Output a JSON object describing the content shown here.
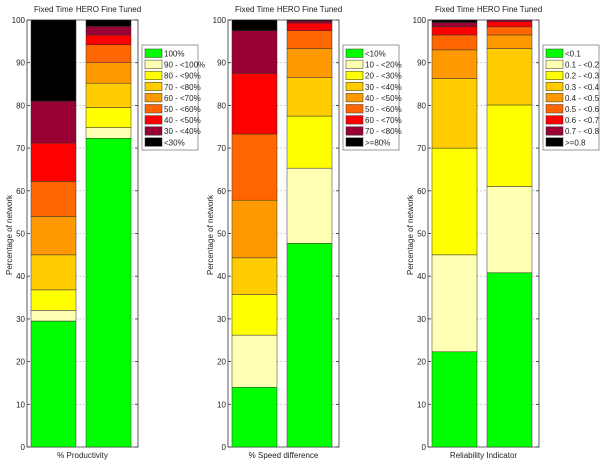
{
  "colors": [
    "#00ff00",
    "#ffffb3",
    "#ffff00",
    "#ffcc00",
    "#ff9900",
    "#ff6600",
    "#ff0000",
    "#990033",
    "#000000"
  ],
  "chart_data": [
    {
      "type": "bar",
      "stacked": true,
      "categories": [
        "Fixed Time",
        "HERO Fine Tuned"
      ],
      "xlabel": "% Productivity",
      "ylabel": "Percentage of network",
      "ylim": [
        0,
        100
      ],
      "yticks": [
        0,
        10,
        20,
        30,
        40,
        50,
        60,
        70,
        80,
        90,
        100
      ],
      "legend_position": "right",
      "series": [
        {
          "name": "100%",
          "values": [
            29.5,
            72.3
          ]
        },
        {
          "name": "90 - <100%",
          "values": [
            2.5,
            2.5
          ]
        },
        {
          "name": "80 - <90%",
          "values": [
            4.8,
            4.7
          ]
        },
        {
          "name": "70 - <80%",
          "values": [
            8.2,
            5.7
          ]
        },
        {
          "name": "60 - <70%",
          "values": [
            9.0,
            4.8
          ]
        },
        {
          "name": "50 - <60%",
          "values": [
            8.2,
            4.2
          ]
        },
        {
          "name": "40 - <50%",
          "values": [
            9.0,
            2.3
          ]
        },
        {
          "name": "30 - <40%",
          "values": [
            9.8,
            2.0
          ]
        },
        {
          "name": "<30%",
          "values": [
            19.0,
            1.5
          ]
        }
      ]
    },
    {
      "type": "bar",
      "stacked": true,
      "categories": [
        "Fixed Time",
        "HERO Fine Tuned"
      ],
      "xlabel": "% Speed difference",
      "ylabel": "Percentage of network",
      "ylim": [
        0,
        100
      ],
      "yticks": [
        0,
        10,
        20,
        30,
        40,
        50,
        60,
        70,
        80,
        90,
        100
      ],
      "legend_position": "right",
      "series": [
        {
          "name": "<10%",
          "values": [
            14.0,
            47.7
          ]
        },
        {
          "name": "10 - <20%",
          "values": [
            12.2,
            17.6
          ]
        },
        {
          "name": "20 - <30%",
          "values": [
            9.5,
            12.2
          ]
        },
        {
          "name": "30 - <40%",
          "values": [
            8.6,
            9.0
          ]
        },
        {
          "name": "40 - <50%",
          "values": [
            13.5,
            6.8
          ]
        },
        {
          "name": "50 - <60%",
          "values": [
            15.5,
            4.2
          ]
        },
        {
          "name": "60 - <70%",
          "values": [
            14.2,
            1.8
          ]
        },
        {
          "name": "70 - <80%",
          "values": [
            10.0,
            0.5
          ]
        },
        {
          "name": ">=80%",
          "values": [
            2.5,
            0.2
          ]
        }
      ]
    },
    {
      "type": "bar",
      "stacked": true,
      "categories": [
        "Fixed Time",
        "HERO Fine Tuned"
      ],
      "xlabel": "Reliability Indicator",
      "ylabel": "Percentage of network",
      "ylim": [
        0,
        100
      ],
      "yticks": [
        0,
        10,
        20,
        30,
        40,
        50,
        60,
        70,
        80,
        90,
        100
      ],
      "legend_position": "right",
      "series": [
        {
          "name": "<0.1",
          "values": [
            22.3,
            40.8
          ]
        },
        {
          "name": "0.1 - <0.2",
          "values": [
            22.7,
            20.2
          ]
        },
        {
          "name": "0.2 - <0.3",
          "values": [
            25.0,
            19.1
          ]
        },
        {
          "name": "0.3 - <0.4",
          "values": [
            16.3,
            13.2
          ]
        },
        {
          "name": "0.4 - <0.5",
          "values": [
            6.7,
            3.2
          ]
        },
        {
          "name": "0.5 - <0.6",
          "values": [
            3.5,
            1.9
          ]
        },
        {
          "name": "0.6 - <0.7",
          "values": [
            1.9,
            1.2
          ]
        },
        {
          "name": "0.7 - <0.8",
          "values": [
            1.0,
            0.4
          ]
        },
        {
          "name": ">=0.8",
          "values": [
            0.6,
            0.0
          ]
        }
      ]
    }
  ]
}
